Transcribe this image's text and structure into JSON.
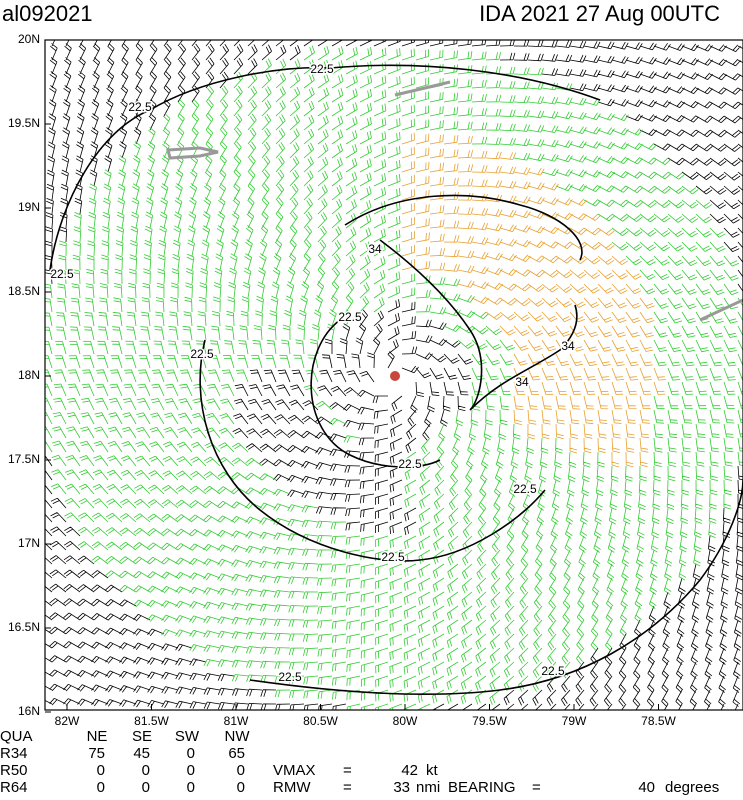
{
  "title_left": "al092021",
  "title_right": "IDA 2021 27 Aug 00UTC",
  "lon_ticks": [
    {
      "value": -82,
      "label": "82W"
    },
    {
      "value": -81.5,
      "label": "81.5W"
    },
    {
      "value": -81,
      "label": "81W"
    },
    {
      "value": -80.5,
      "label": "80.5W"
    },
    {
      "value": -80,
      "label": "80W"
    },
    {
      "value": -79.5,
      "label": "79.5W"
    },
    {
      "value": -79,
      "label": "79W"
    },
    {
      "value": -78.5,
      "label": "78.5W"
    }
  ],
  "lat_ticks": [
    {
      "value": 20,
      "label": "20N"
    },
    {
      "value": 19.5,
      "label": "19.5N"
    },
    {
      "value": 19,
      "label": "19N"
    },
    {
      "value": 18.5,
      "label": "18.5N"
    },
    {
      "value": 18,
      "label": "18N"
    },
    {
      "value": 17.5,
      "label": "17.5N"
    },
    {
      "value": 17,
      "label": "17N"
    },
    {
      "value": 16.5,
      "label": "16.5N"
    },
    {
      "value": 16,
      "label": "16N"
    }
  ],
  "contour_labels": [
    22.5,
    22.5,
    22.5,
    22.5,
    22.5,
    22.5,
    22.5,
    22.5,
    22.5,
    22.5,
    34,
    34,
    34
  ],
  "table": {
    "header": [
      "QUA",
      "NE",
      "SE",
      "SW",
      "NW"
    ],
    "rows": [
      {
        "label": "R34",
        "values": [
          75,
          45,
          0,
          65
        ]
      },
      {
        "label": "R50",
        "values": [
          0,
          0,
          0,
          0
        ]
      },
      {
        "label": "R64",
        "values": [
          0,
          0,
          0,
          0
        ]
      }
    ]
  },
  "vmax": {
    "name": "VMAX",
    "eq": "=",
    "value": 42,
    "unit": "kt"
  },
  "rmw": {
    "name": "RMW",
    "eq": "=",
    "value": 33,
    "unit": "nmi"
  },
  "bearing": {
    "name": "BEARING",
    "eq": "=",
    "value": 40,
    "unit": "degrees"
  }
}
